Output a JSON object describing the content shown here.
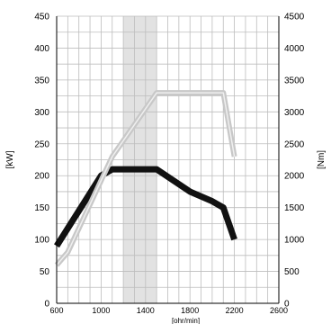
{
  "chart_data": {
    "type": "line",
    "xlabel": "[ohr/min]",
    "ylabel_left": "[kW]",
    "ylabel_right": "[Nm]",
    "xlim": [
      600,
      2600
    ],
    "ylim_left": [
      0,
      450
    ],
    "ylim_right": [
      0,
      4500
    ],
    "x_ticks": [
      600,
      1000,
      1400,
      1800,
      2200,
      2600
    ],
    "y_ticks_left": [
      0,
      50,
      100,
      150,
      200,
      250,
      300,
      350,
      400,
      450
    ],
    "y_ticks_right": [
      0,
      500,
      1000,
      1500,
      2000,
      2500,
      3000,
      3500,
      4000,
      4500
    ],
    "grid": true,
    "highlight_band": [
      1200,
      1500
    ],
    "series": [
      {
        "axis": "left",
        "color": "#111111",
        "x": [
          600,
          1000,
          1100,
          1500,
          1800,
          2000,
          2100,
          2200
        ],
        "y": [
          90,
          200,
          210,
          210,
          175,
          160,
          150,
          100
        ]
      },
      {
        "axis": "right",
        "color": "#c8c8c8",
        "x": [
          600,
          700,
          1100,
          1500,
          1900,
          2100,
          2200
        ],
        "y": [
          600,
          800,
          2300,
          3300,
          3300,
          3300,
          2300
        ]
      }
    ]
  }
}
